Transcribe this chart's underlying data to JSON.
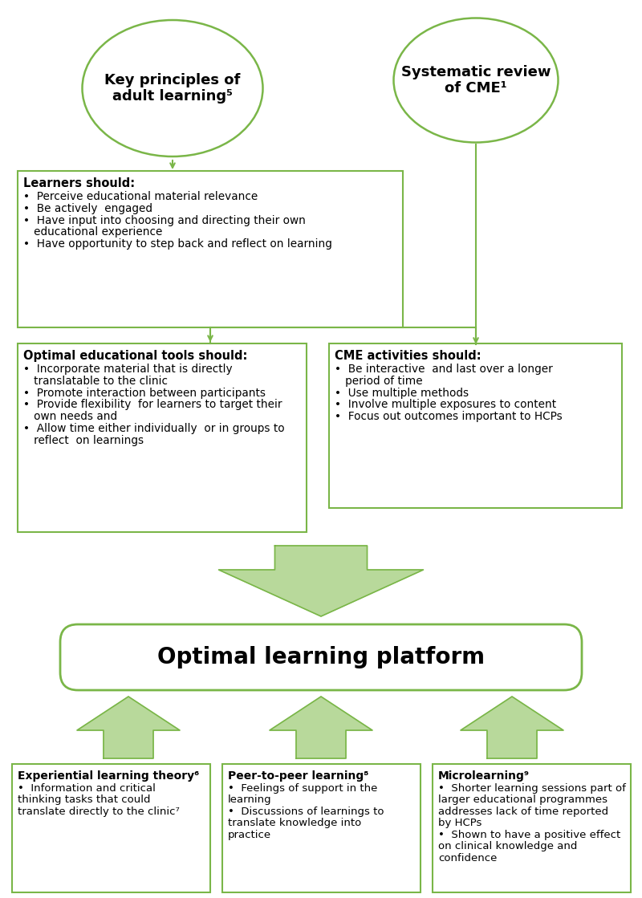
{
  "bg_color": "#ffffff",
  "green_line": "#7ab648",
  "arrow_fill": "#b8d99b",
  "border_color": "#7ab648",
  "ellipse1_text": "Key principles of\nadult learning⁵",
  "ellipse2_text": "Systematic review\nof CME¹",
  "box1_title": "Learners should:",
  "box1_bullets": [
    "Perceive educational material relevance",
    "Be actively  engaged",
    "Have input into choosing and directing their own\n   educational experience",
    "Have opportunity to step back and reflect on learning"
  ],
  "box2_title": "Optimal educational tools should:",
  "box2_bullets": [
    "Incorporate material that is directly\n   translatable to the clinic",
    "Promote interaction between participants",
    "Provide flexibility  for learners to target their\n   own needs and",
    "Allow time either individually  or in groups to\n   reflect  on learnings"
  ],
  "box3_title": "CME activities should:",
  "box3_bullets": [
    "Be interactive  and last over a longer\n   period of time",
    "Use multiple methods",
    "Involve multiple exposures to content",
    "Focus out outcomes important to HCPs"
  ],
  "center_box_text": "Optimal learning platform",
  "box4_title": "Experiential learning theory⁶",
  "box4_bullets": [
    "Information and critical\nthinking tasks that could\ntranslate directly to the clinic⁷"
  ],
  "box5_title": "Peer-to-peer learning⁸",
  "box5_bullets": [
    "Feelings of support in the\nlearning",
    "Discussions of learnings to\ntranslate knowledge into\npractice"
  ],
  "box6_title": "Microlearning⁹",
  "box6_bullets": [
    "Shorter learning sessions part of\nlarger educational programmes\naddresses lack of time reported\nby HCPs",
    "Shown to have a positive effect\non clinical knowledge and\nconfidence"
  ]
}
